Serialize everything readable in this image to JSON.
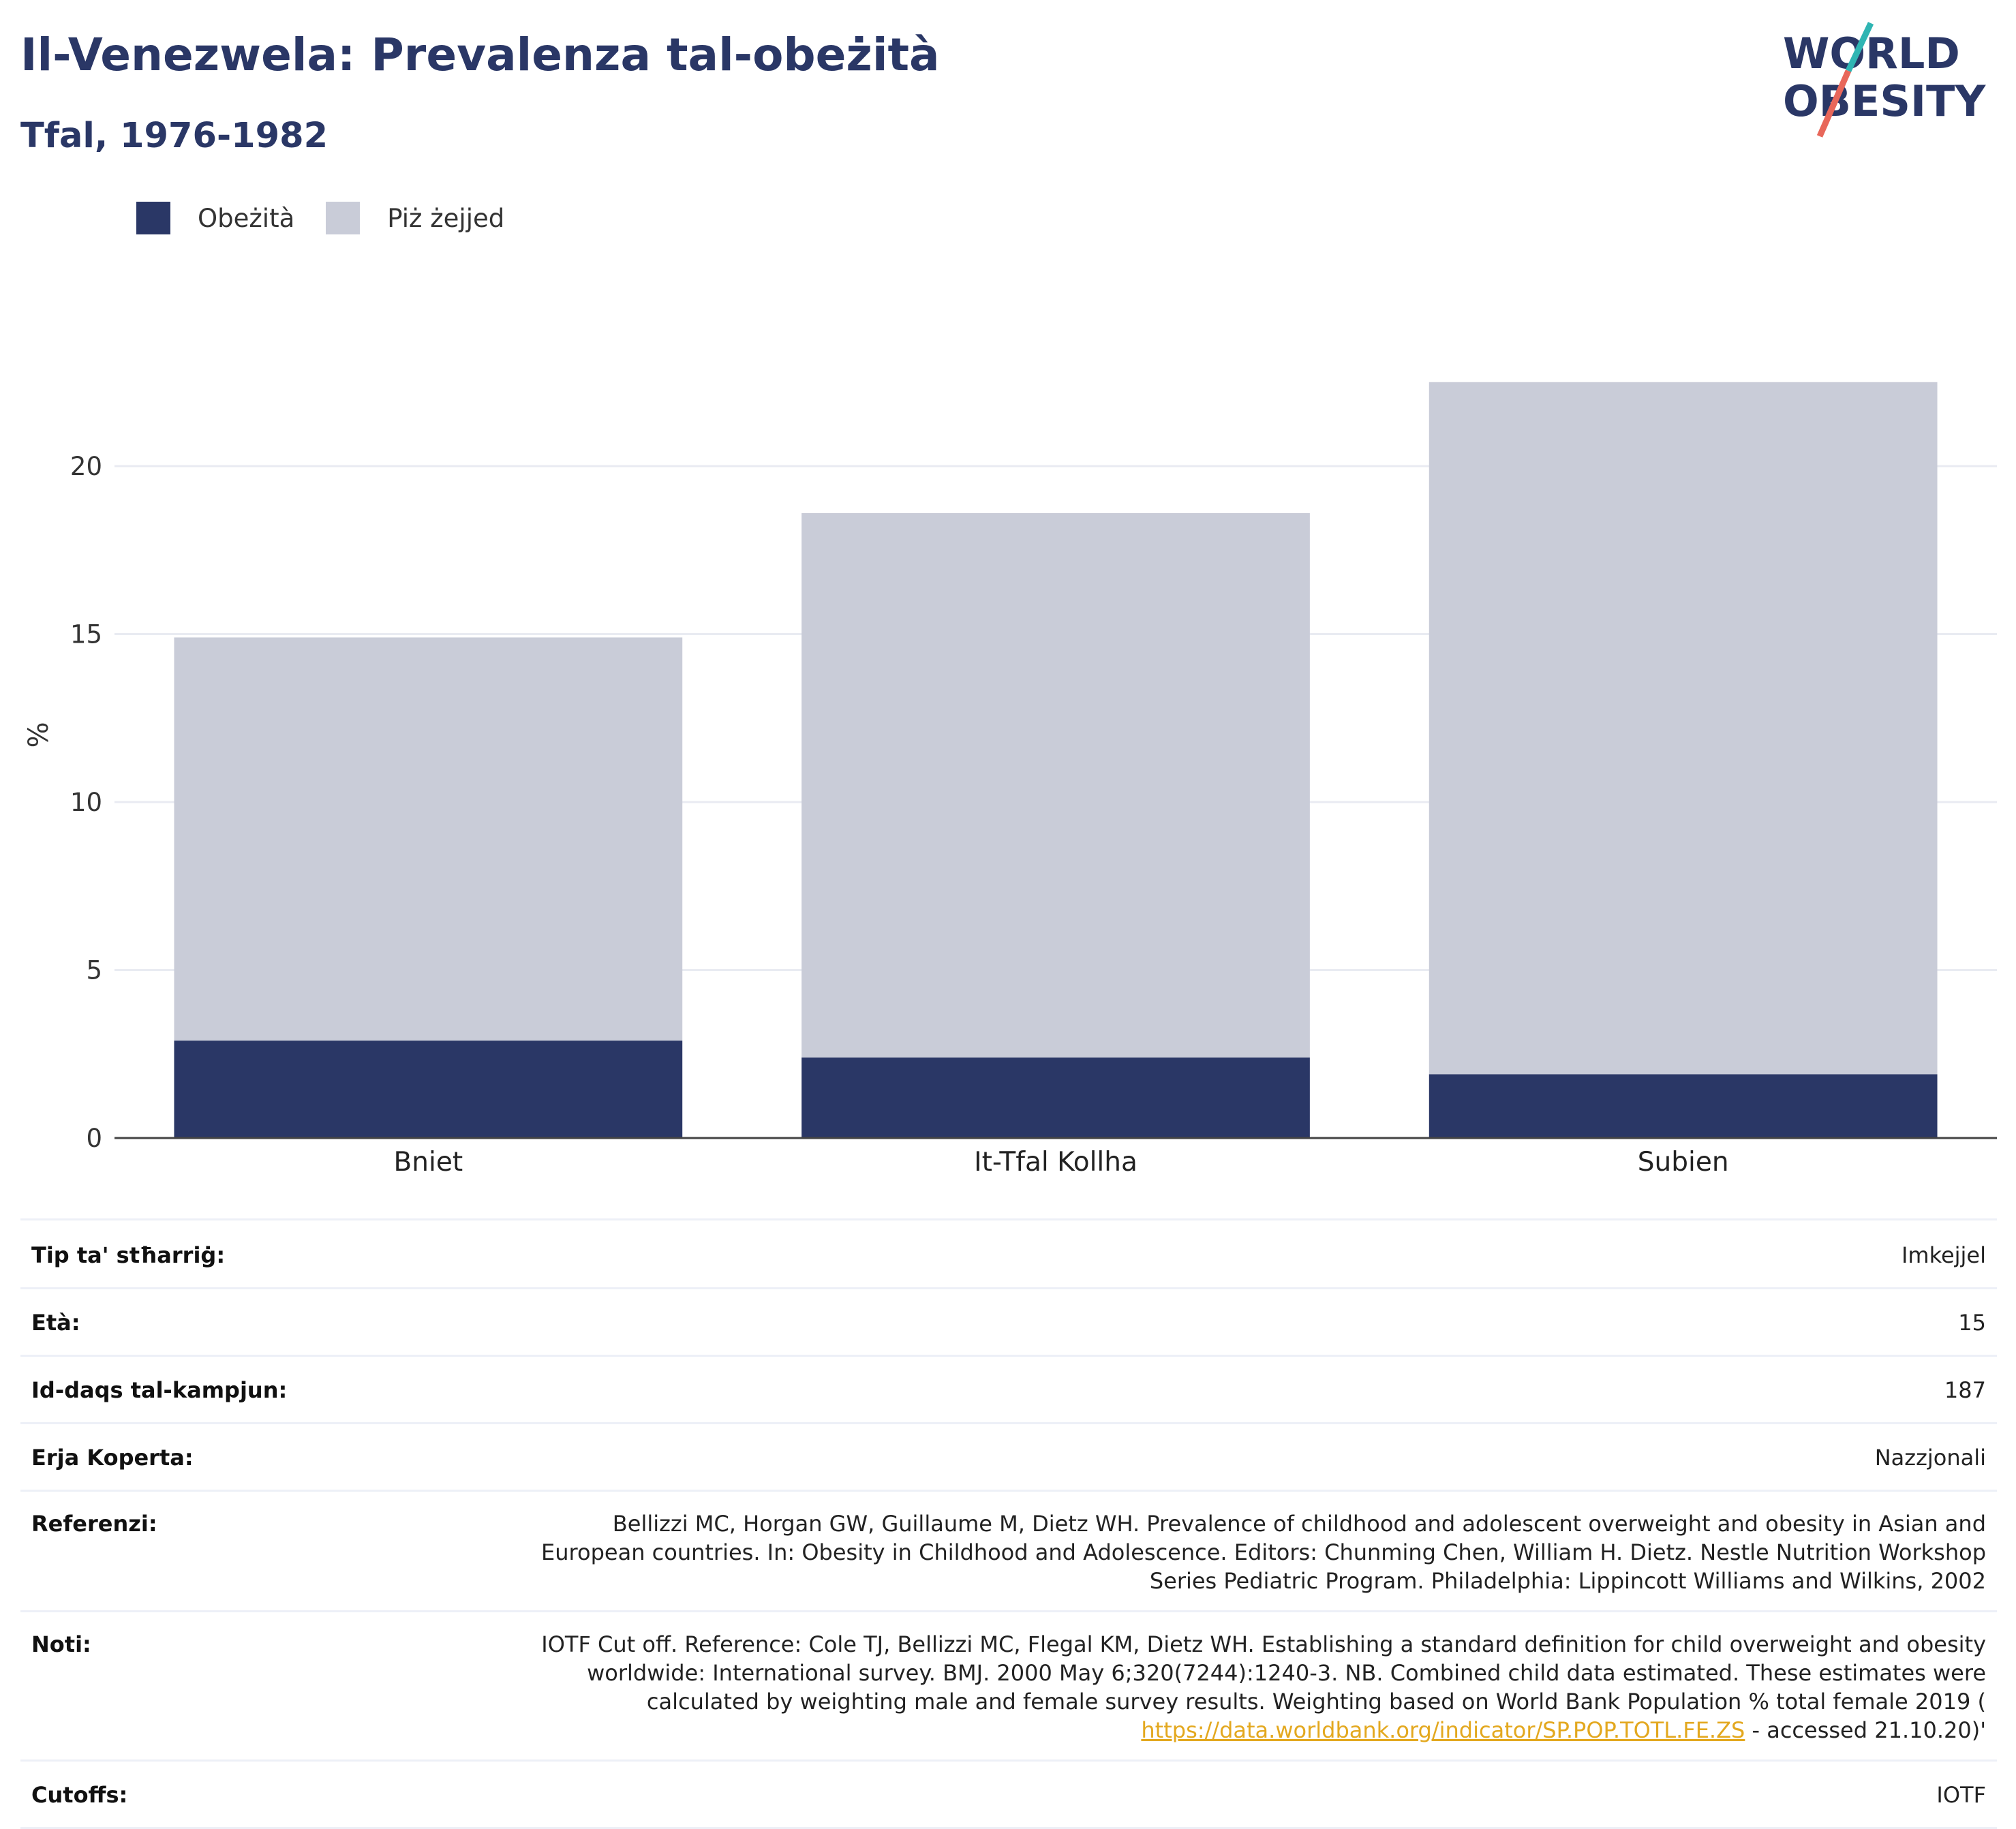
{
  "header": {
    "title": "Il-Venezwela: Prevalenza tal-obeżità",
    "subtitle": "Tfal, 1976-1982"
  },
  "logo": {
    "line1": "WORLD",
    "line2": "OBESITY"
  },
  "colors": {
    "obesity": "#2a3766",
    "overweight": "#c9ccd8",
    "accent_teal": "#2fb5b3",
    "accent_red": "#e8675a",
    "link": "#e3a81f"
  },
  "legend": [
    {
      "label": "Obeżità",
      "color": "#2a3766"
    },
    {
      "label": "Piż żejjed",
      "color": "#c9ccd8"
    }
  ],
  "chart_data": {
    "type": "bar",
    "stacked": true,
    "categories": [
      "Bniet",
      "It-Tfal Kollha",
      "Subien"
    ],
    "series": [
      {
        "name": "Obeżità",
        "values": [
          2.9,
          2.4,
          1.9
        ]
      },
      {
        "name": "Piż żejjed",
        "values": [
          12.0,
          16.2,
          20.6
        ]
      }
    ],
    "ylabel": "%",
    "xlabel": "",
    "ylim": [
      0,
      24
    ],
    "yticks": [
      0,
      5,
      10,
      15,
      20
    ],
    "grid": true,
    "legend_position": "top-left"
  },
  "info": {
    "rows": [
      {
        "key": "Tip ta' stħarriġ:",
        "value": "Imkejjel"
      },
      {
        "key": "Età:",
        "value": "15"
      },
      {
        "key": "Id-daqs tal-kampjun:",
        "value": "187"
      },
      {
        "key": "Erja Koperta:",
        "value": "Nazzjonali"
      },
      {
        "key": "Referenzi:",
        "lines": [
          "Bellizzi MC, Horgan GW, Guillaume M, Dietz WH. Prevalence of childhood and adolescent overweight and obesity in Asian and",
          "European countries. In: Obesity in Childhood and Adolescence. Editors: Chunming Chen, William H. Dietz. Nestle Nutrition Workshop",
          "Series Pediatric Program. Philadelphia: Lippincott Williams and Wilkins, 2002"
        ]
      },
      {
        "key": "Noti:",
        "lines": [
          "IOTF Cut off. Reference: Cole TJ, Bellizzi MC, Flegal KM, Dietz WH. Establishing a standard definition for child overweight and obesity",
          "worldwide: International survey. BMJ. 2000 May 6;320(7244):1240-3. NB. Combined child data estimated. These estimates were",
          "calculated by weighting male and female survey results. Weighting based on World Bank Population % total female 2019 ("
        ],
        "link": "https://data.worldbank.org/indicator/SP.POP.TOTL.FE.ZS",
        "tail": " - accessed 21.10.20)'"
      },
      {
        "key": "Cutoffs:",
        "value": "IOTF"
      }
    ]
  }
}
